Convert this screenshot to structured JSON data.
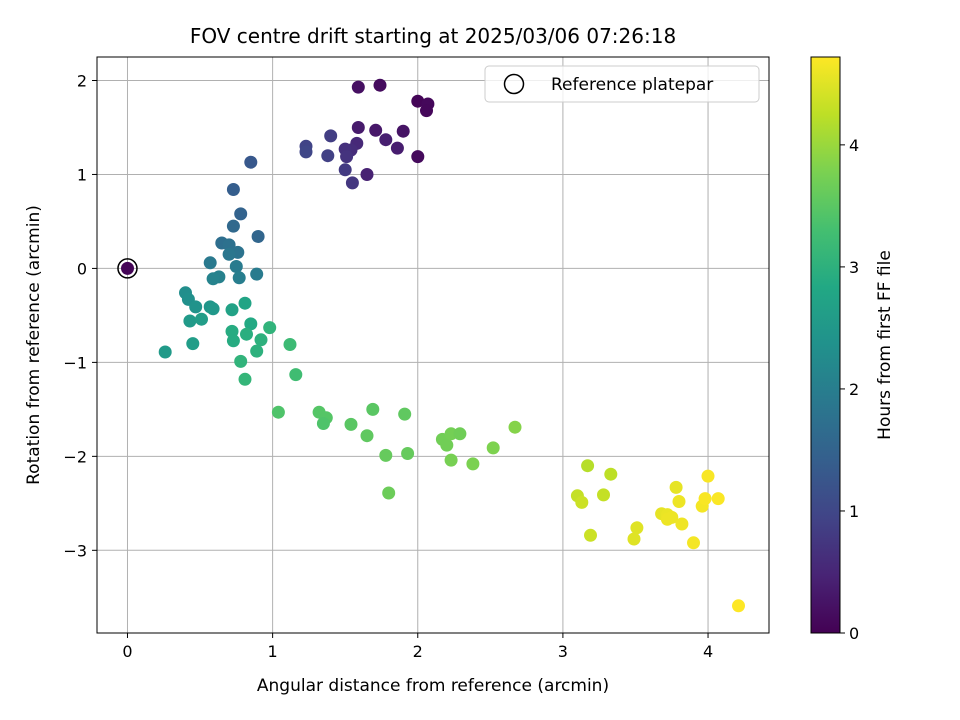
{
  "chart_data": {
    "type": "scatter",
    "title": "FOV centre drift starting at 2025/03/06 07:26:18",
    "xlabel": "Angular distance from reference (arcmin)",
    "ylabel": "Rotation from reference (arcmin)",
    "xlim": [
      -0.21,
      4.42
    ],
    "ylim": [
      -3.88,
      2.25
    ],
    "xticks": [
      0,
      1,
      2,
      3,
      4
    ],
    "yticks": [
      -3,
      -2,
      -1,
      0,
      1,
      2
    ],
    "grid": true,
    "legend": {
      "position": "top-right",
      "entries": [
        "Reference platepar"
      ]
    },
    "reference_point": {
      "label": "Reference platepar",
      "x": 0,
      "y": 0
    },
    "colorbar": {
      "label": "Hours from first FF file",
      "colormap": "viridis",
      "range": [
        0,
        4.72
      ],
      "ticks": [
        0,
        1,
        2,
        3,
        4
      ]
    },
    "series": [
      {
        "color_value": "hours",
        "points": [
          {
            "x": 0.0,
            "y": 0.0,
            "h": 0.05
          },
          {
            "x": 2.0,
            "y": 1.78,
            "h": 0.05
          },
          {
            "x": 2.07,
            "y": 1.75,
            "h": 0.1
          },
          {
            "x": 2.06,
            "y": 1.68,
            "h": 0.08
          },
          {
            "x": 1.74,
            "y": 1.95,
            "h": 0.15
          },
          {
            "x": 1.59,
            "y": 1.93,
            "h": 0.2
          },
          {
            "x": 2.0,
            "y": 1.19,
            "h": 0.12
          },
          {
            "x": 1.71,
            "y": 1.47,
            "h": 0.3
          },
          {
            "x": 1.59,
            "y": 1.5,
            "h": 0.35
          },
          {
            "x": 1.9,
            "y": 1.46,
            "h": 0.25
          },
          {
            "x": 1.78,
            "y": 1.37,
            "h": 0.4
          },
          {
            "x": 1.86,
            "y": 1.28,
            "h": 0.38
          },
          {
            "x": 1.65,
            "y": 1.0,
            "h": 0.45
          },
          {
            "x": 1.58,
            "y": 1.33,
            "h": 0.55
          },
          {
            "x": 1.54,
            "y": 1.26,
            "h": 0.6
          },
          {
            "x": 1.5,
            "y": 1.27,
            "h": 0.65
          },
          {
            "x": 1.51,
            "y": 1.19,
            "h": 0.7
          },
          {
            "x": 1.55,
            "y": 0.91,
            "h": 0.75
          },
          {
            "x": 1.5,
            "y": 1.05,
            "h": 0.8
          },
          {
            "x": 1.4,
            "y": 1.41,
            "h": 0.85
          },
          {
            "x": 1.38,
            "y": 1.2,
            "h": 0.9
          },
          {
            "x": 1.23,
            "y": 1.3,
            "h": 0.95
          },
          {
            "x": 1.23,
            "y": 1.24,
            "h": 1.0
          },
          {
            "x": 0.85,
            "y": 1.13,
            "h": 1.3
          },
          {
            "x": 0.73,
            "y": 0.84,
            "h": 1.4
          },
          {
            "x": 0.78,
            "y": 0.58,
            "h": 1.5
          },
          {
            "x": 0.73,
            "y": 0.45,
            "h": 1.6
          },
          {
            "x": 0.9,
            "y": 0.34,
            "h": 1.55
          },
          {
            "x": 0.65,
            "y": 0.27,
            "h": 1.7
          },
          {
            "x": 0.7,
            "y": 0.25,
            "h": 1.75
          },
          {
            "x": 0.76,
            "y": 0.17,
            "h": 1.8
          },
          {
            "x": 0.7,
            "y": 0.15,
            "h": 1.85
          },
          {
            "x": 0.57,
            "y": 0.06,
            "h": 1.9
          },
          {
            "x": 0.75,
            "y": 0.02,
            "h": 1.95
          },
          {
            "x": 0.77,
            "y": -0.1,
            "h": 2.0
          },
          {
            "x": 0.63,
            "y": -0.09,
            "h": 2.05
          },
          {
            "x": 0.59,
            "y": -0.11,
            "h": 2.1
          },
          {
            "x": 0.89,
            "y": -0.06,
            "h": 1.95
          },
          {
            "x": 0.4,
            "y": -0.26,
            "h": 2.3
          },
          {
            "x": 0.42,
            "y": -0.33,
            "h": 2.35
          },
          {
            "x": 0.47,
            "y": -0.41,
            "h": 2.4
          },
          {
            "x": 0.57,
            "y": -0.41,
            "h": 2.45
          },
          {
            "x": 0.59,
            "y": -0.43,
            "h": 2.5
          },
          {
            "x": 0.43,
            "y": -0.56,
            "h": 2.55
          },
          {
            "x": 0.51,
            "y": -0.54,
            "h": 2.6
          },
          {
            "x": 0.45,
            "y": -0.8,
            "h": 2.6
          },
          {
            "x": 0.26,
            "y": -0.89,
            "h": 2.55
          },
          {
            "x": 0.72,
            "y": -0.44,
            "h": 2.7
          },
          {
            "x": 0.81,
            "y": -0.37,
            "h": 2.75
          },
          {
            "x": 0.85,
            "y": -0.59,
            "h": 2.85
          },
          {
            "x": 0.72,
            "y": -0.67,
            "h": 2.9
          },
          {
            "x": 0.82,
            "y": -0.7,
            "h": 2.95
          },
          {
            "x": 0.73,
            "y": -0.77,
            "h": 2.9
          },
          {
            "x": 0.92,
            "y": -0.76,
            "h": 3.0
          },
          {
            "x": 0.89,
            "y": -0.88,
            "h": 3.0
          },
          {
            "x": 0.98,
            "y": -0.63,
            "h": 3.05
          },
          {
            "x": 0.78,
            "y": -0.99,
            "h": 3.05
          },
          {
            "x": 0.81,
            "y": -1.18,
            "h": 3.1
          },
          {
            "x": 1.12,
            "y": -0.81,
            "h": 3.2
          },
          {
            "x": 1.16,
            "y": -1.13,
            "h": 3.25
          },
          {
            "x": 1.04,
            "y": -1.53,
            "h": 3.4
          },
          {
            "x": 1.32,
            "y": -1.53,
            "h": 3.45
          },
          {
            "x": 1.37,
            "y": -1.59,
            "h": 3.45
          },
          {
            "x": 1.35,
            "y": -1.65,
            "h": 3.4
          },
          {
            "x": 1.54,
            "y": -1.66,
            "h": 3.5
          },
          {
            "x": 1.65,
            "y": -1.78,
            "h": 3.55
          },
          {
            "x": 1.69,
            "y": -1.5,
            "h": 3.5
          },
          {
            "x": 1.78,
            "y": -1.99,
            "h": 3.6
          },
          {
            "x": 1.8,
            "y": -2.39,
            "h": 3.65
          },
          {
            "x": 1.91,
            "y": -1.55,
            "h": 3.55
          },
          {
            "x": 1.93,
            "y": -1.97,
            "h": 3.6
          },
          {
            "x": 2.17,
            "y": -1.82,
            "h": 3.7
          },
          {
            "x": 2.2,
            "y": -1.88,
            "h": 3.7
          },
          {
            "x": 2.23,
            "y": -1.76,
            "h": 3.72
          },
          {
            "x": 2.29,
            "y": -1.76,
            "h": 3.68
          },
          {
            "x": 2.23,
            "y": -2.04,
            "h": 3.75
          },
          {
            "x": 2.38,
            "y": -2.08,
            "h": 3.78
          },
          {
            "x": 2.52,
            "y": -1.91,
            "h": 3.8
          },
          {
            "x": 2.67,
            "y": -1.69,
            "h": 3.85
          },
          {
            "x": 3.17,
            "y": -2.1,
            "h": 4.2
          },
          {
            "x": 3.33,
            "y": -2.19,
            "h": 4.25
          },
          {
            "x": 3.1,
            "y": -2.42,
            "h": 4.3
          },
          {
            "x": 3.13,
            "y": -2.49,
            "h": 4.35
          },
          {
            "x": 3.28,
            "y": -2.41,
            "h": 4.3
          },
          {
            "x": 3.19,
            "y": -2.84,
            "h": 4.35
          },
          {
            "x": 3.49,
            "y": -2.88,
            "h": 4.5
          },
          {
            "x": 3.51,
            "y": -2.76,
            "h": 4.5
          },
          {
            "x": 3.68,
            "y": -2.61,
            "h": 4.55
          },
          {
            "x": 3.72,
            "y": -2.62,
            "h": 4.58
          },
          {
            "x": 3.72,
            "y": -2.67,
            "h": 4.6
          },
          {
            "x": 3.75,
            "y": -2.65,
            "h": 4.6
          },
          {
            "x": 3.78,
            "y": -2.33,
            "h": 4.55
          },
          {
            "x": 3.8,
            "y": -2.48,
            "h": 4.6
          },
          {
            "x": 3.82,
            "y": -2.72,
            "h": 4.62
          },
          {
            "x": 3.9,
            "y": -2.92,
            "h": 4.65
          },
          {
            "x": 3.96,
            "y": -2.53,
            "h": 4.65
          },
          {
            "x": 3.98,
            "y": -2.45,
            "h": 4.68
          },
          {
            "x": 4.0,
            "y": -2.21,
            "h": 4.68
          },
          {
            "x": 4.07,
            "y": -2.45,
            "h": 4.7
          },
          {
            "x": 4.21,
            "y": -3.59,
            "h": 4.72
          }
        ]
      }
    ]
  }
}
